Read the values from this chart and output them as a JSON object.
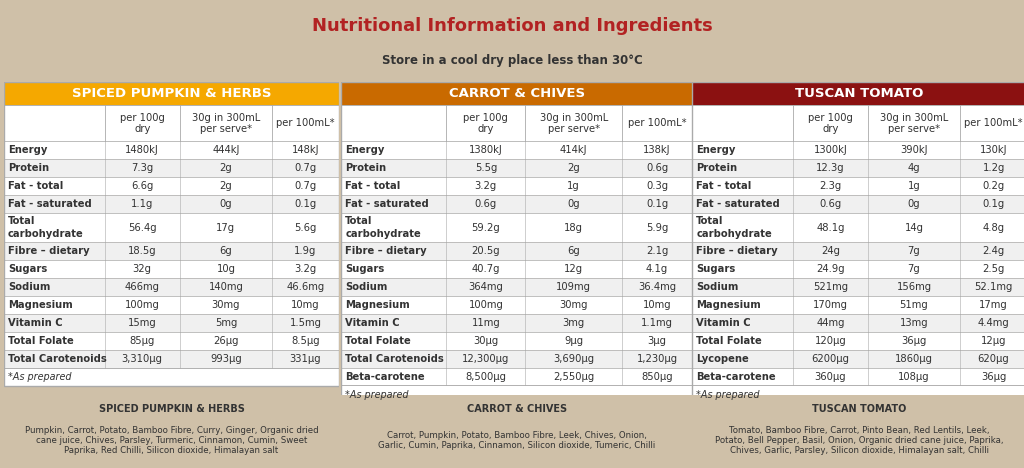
{
  "title": "Nutritional Information and Ingredients",
  "subtitle": "Store in a cool dry place less than 30°C",
  "bg_color": "#cfc0a8",
  "title_color": "#b22222",
  "text_color": "#333333",
  "sections": [
    {
      "name": "SPICED PUMPKIN & HERBS",
      "header_color": "#F5A800",
      "header_text_color": "#ffffff",
      "rows": [
        {
          "label": "Energy",
          "label2": "",
          "v1": "1480kJ",
          "v2": "444kJ",
          "v3": "148kJ",
          "tall": false
        },
        {
          "label": "Protein",
          "label2": "",
          "v1": "7.3g",
          "v2": "2g",
          "v3": "0.7g",
          "tall": false
        },
        {
          "label": "Fat - total",
          "label2": "",
          "v1": "6.6g",
          "v2": "2g",
          "v3": "0.7g",
          "tall": false
        },
        {
          "label": "Fat - saturated",
          "label2": "",
          "v1": "1.1g",
          "v2": "0g",
          "v3": "0.1g",
          "tall": false
        },
        {
          "label": "Total",
          "label2": "carbohydrate",
          "v1": "56.4g",
          "v2": "17g",
          "v3": "5.6g",
          "tall": true
        },
        {
          "label": "Fibre – dietary",
          "label2": "",
          "v1": "18.5g",
          "v2": "6g",
          "v3": "1.9g",
          "tall": false
        },
        {
          "label": "Sugars",
          "label2": "",
          "v1": "32g",
          "v2": "10g",
          "v3": "3.2g",
          "tall": false
        },
        {
          "label": "Sodium",
          "label2": "",
          "v1": "466mg",
          "v2": "140mg",
          "v3": "46.6mg",
          "tall": false
        },
        {
          "label": "Magnesium",
          "label2": "",
          "v1": "100mg",
          "v2": "30mg",
          "v3": "10mg",
          "tall": false
        },
        {
          "label": "Vitamin C",
          "label2": "",
          "v1": "15mg",
          "v2": "5mg",
          "v3": "1.5mg",
          "tall": false
        },
        {
          "label": "Total Folate",
          "label2": "",
          "v1": "85μg",
          "v2": "26μg",
          "v3": "8.5μg",
          "tall": false
        },
        {
          "label": "Total Carotenoids",
          "label2": "",
          "v1": "3,310μg",
          "v2": "993μg",
          "v3": "331μg",
          "tall": false
        }
      ],
      "ingredients_title": "SPICED PUMPKIN & HERBS",
      "ingredients": "Pumpkin, Carrot, Potato, Bamboo Fibre, Curry, Ginger, Organic dried\ncane juice, Chives, Parsley, Turmeric, Cinnamon, Cumin, Sweet\nPaprika, Red Chilli, Silicon dioxide, Himalayan salt"
    },
    {
      "name": "CARROT & CHIVES",
      "header_color": "#C96A00",
      "header_text_color": "#ffffff",
      "rows": [
        {
          "label": "Energy",
          "label2": "",
          "v1": "1380kJ",
          "v2": "414kJ",
          "v3": "138kJ",
          "tall": false
        },
        {
          "label": "Protein",
          "label2": "",
          "v1": "5.5g",
          "v2": "2g",
          "v3": "0.6g",
          "tall": false
        },
        {
          "label": "Fat - total",
          "label2": "",
          "v1": "3.2g",
          "v2": "1g",
          "v3": "0.3g",
          "tall": false
        },
        {
          "label": "Fat - saturated",
          "label2": "",
          "v1": "0.6g",
          "v2": "0g",
          "v3": "0.1g",
          "tall": false
        },
        {
          "label": "Total",
          "label2": "carbohydrate",
          "v1": "59.2g",
          "v2": "18g",
          "v3": "5.9g",
          "tall": true
        },
        {
          "label": "Fibre – dietary",
          "label2": "",
          "v1": "20.5g",
          "v2": "6g",
          "v3": "2.1g",
          "tall": false
        },
        {
          "label": "Sugars",
          "label2": "",
          "v1": "40.7g",
          "v2": "12g",
          "v3": "4.1g",
          "tall": false
        },
        {
          "label": "Sodium",
          "label2": "",
          "v1": "364mg",
          "v2": "109mg",
          "v3": "36.4mg",
          "tall": false
        },
        {
          "label": "Magnesium",
          "label2": "",
          "v1": "100mg",
          "v2": "30mg",
          "v3": "10mg",
          "tall": false
        },
        {
          "label": "Vitamin C",
          "label2": "",
          "v1": "11mg",
          "v2": "3mg",
          "v3": "1.1mg",
          "tall": false
        },
        {
          "label": "Total Folate",
          "label2": "",
          "v1": "30μg",
          "v2": "9μg",
          "v3": "3μg",
          "tall": false
        },
        {
          "label": "Total Carotenoids",
          "label2": "",
          "v1": "12,300μg",
          "v2": "3,690μg",
          "v3": "1,230μg",
          "tall": false
        },
        {
          "label": "Beta-carotene",
          "label2": "",
          "v1": "8,500μg",
          "v2": "2,550μg",
          "v3": "850μg",
          "tall": false
        }
      ],
      "ingredients_title": "CARROT & CHIVES",
      "ingredients": "Carrot, Pumpkin, Potato, Bamboo Fibre, Leek, Chives, Onion,\nGarlic, Cumin, Paprika, Cinnamon, Silicon dioxide, Tumeric, Chilli"
    },
    {
      "name": "TUSCAN TOMATO",
      "header_color": "#8B1111",
      "header_text_color": "#ffffff",
      "rows": [
        {
          "label": "Energy",
          "label2": "",
          "v1": "1300kJ",
          "v2": "390kJ",
          "v3": "130kJ",
          "tall": false
        },
        {
          "label": "Protein",
          "label2": "",
          "v1": "12.3g",
          "v2": "4g",
          "v3": "1.2g",
          "tall": false
        },
        {
          "label": "Fat - total",
          "label2": "",
          "v1": "2.3g",
          "v2": "1g",
          "v3": "0.2g",
          "tall": false
        },
        {
          "label": "Fat - saturated",
          "label2": "",
          "v1": "0.6g",
          "v2": "0g",
          "v3": "0.1g",
          "tall": false
        },
        {
          "label": "Total",
          "label2": "carbohydrate",
          "v1": "48.1g",
          "v2": "14g",
          "v3": "4.8g",
          "tall": true
        },
        {
          "label": "Fibre – dietary",
          "label2": "",
          "v1": "24g",
          "v2": "7g",
          "v3": "2.4g",
          "tall": false
        },
        {
          "label": "Sugars",
          "label2": "",
          "v1": "24.9g",
          "v2": "7g",
          "v3": "2.5g",
          "tall": false
        },
        {
          "label": "Sodium",
          "label2": "",
          "v1": "521mg",
          "v2": "156mg",
          "v3": "52.1mg",
          "tall": false
        },
        {
          "label": "Magnesium",
          "label2": "",
          "v1": "170mg",
          "v2": "51mg",
          "v3": "17mg",
          "tall": false
        },
        {
          "label": "Vitamin C",
          "label2": "",
          "v1": "44mg",
          "v2": "13mg",
          "v3": "4.4mg",
          "tall": false
        },
        {
          "label": "Total Folate",
          "label2": "",
          "v1": "120μg",
          "v2": "36μg",
          "v3": "12μg",
          "tall": false
        },
        {
          "label": "Lycopene",
          "label2": "",
          "v1": "6200μg",
          "v2": "1860μg",
          "v3": "620μg",
          "tall": false
        },
        {
          "label": "Beta-carotene",
          "label2": "",
          "v1": "360μg",
          "v2": "108μg",
          "v3": "36μg",
          "tall": false
        }
      ],
      "ingredients_title": "TUSCAN TOMATO",
      "ingredients": "Tomato, Bamboo Fibre, Carrot, Pinto Bean, Red Lentils, Leek,\nPotato, Bell Pepper, Basil, Onion, Organic dried cane juice, Paprika,\nChives, Garlic, Parsley, Silicon dioxide, Himalayan salt, Chilli"
    }
  ],
  "border_color": "#aaaaaa",
  "cell_fontsize": 7.2,
  "header_fontsize": 9.5,
  "title_fontsize": 13,
  "subtitle_fontsize": 8.5
}
